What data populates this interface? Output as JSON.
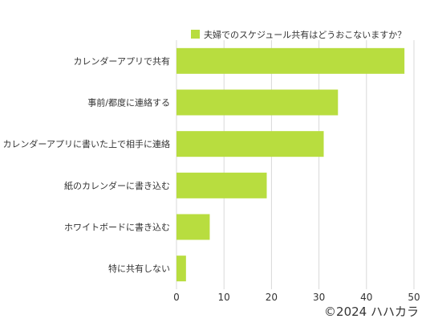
{
  "chart_data": {
    "type": "bar",
    "orientation": "horizontal",
    "categories": [
      "カレンダーアプリで共有",
      "事前/都度に連絡する",
      "カレンダーアプリに書いた上で相手に連絡",
      "紙のカレンダーに書き込む",
      "ホワイトボードに書き込む",
      "特に共有しない"
    ],
    "series": [
      {
        "name": "夫婦でのスケジュール共有はどうおこないますか？",
        "values": [
          48,
          34,
          31,
          19,
          7,
          2
        ],
        "color": "#b8dd3f"
      }
    ],
    "xlim": [
      0,
      50
    ],
    "xticks": [
      0,
      10,
      20,
      30,
      40,
      50
    ],
    "grid": "vertical",
    "legend": "top-center",
    "xlabel": "",
    "ylabel": ""
  },
  "credit": "©2024 ハハカラ",
  "colors": {
    "bar": "#b8dd3f",
    "grid": "#d9d9d9",
    "text": "#333333"
  }
}
